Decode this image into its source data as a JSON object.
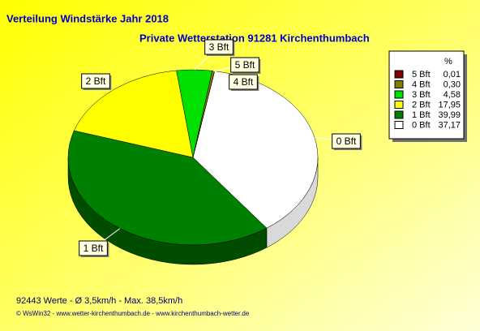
{
  "chart_data": {
    "type": "pie",
    "title": "Verteilung Windstärke  Jahr 2018",
    "subtitle": "Private Wetterstation 91281 Kirchenthumbach",
    "legend_header": "%",
    "categories": [
      "5 Bft",
      "4 Bft",
      "3 Bft",
      "2 Bft",
      "1 Bft",
      "0 Bft"
    ],
    "values": [
      0.01,
      0.3,
      4.58,
      17.95,
      39.99,
      37.17
    ],
    "value_labels": [
      "0,01",
      "0,30",
      "4,58",
      "17,95",
      "39,99",
      "37,17"
    ],
    "colors": [
      "#800000",
      "#808000",
      "#00e000",
      "#ffff00",
      "#008000",
      "#ffffff"
    ],
    "footer": "92443 Werte   -   Ø 3,5km/h  -  Max. 38,5km/h",
    "credits": "© WsWin32  -  www.wetter-kirchenthumbach.de  -  www.kirchenthumbach-wetter.de"
  }
}
